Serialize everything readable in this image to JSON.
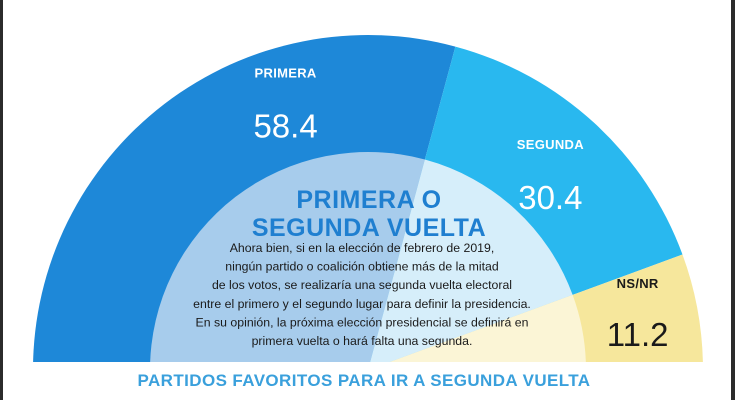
{
  "chart_data": {
    "type": "pie",
    "title": "PRIMERA O SEGUNDA VUELTA",
    "title_lines": [
      "PRIMERA O",
      "SEGUNDA VUELTA"
    ],
    "question_lines": [
      "Ahora bien, si en la elección de febrero de 2019,",
      "ningún partido o coalición obtiene más de la mitad",
      "de los votos, se realizaría una segunda vuelta electoral",
      "entre el primero y el segundo lugar para definir la presidencia.",
      "En su opinión, la próxima elección presidencial se definirá en",
      "primera vuelta o hará falta una segunda."
    ],
    "categories": [
      "PRIMERA",
      "SEGUNDA",
      "NS/NR"
    ],
    "values": [
      58.4,
      30.4,
      11.2
    ],
    "value_labels": [
      "58.4",
      "30.4",
      "11.2"
    ],
    "colors": [
      "#1e88d8",
      "#29b8ef",
      "#f6e79c"
    ],
    "inner_colors": [
      "#a7ccec",
      "#d6eefa",
      "#fbf5d6"
    ],
    "label_colors": [
      "#ffffff",
      "#ffffff",
      "#1a1a1a"
    ]
  },
  "footer": "PARTIDOS FAVORITOS PARA IR A SEGUNDA VUELTA"
}
